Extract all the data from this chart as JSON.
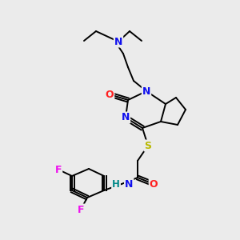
{
  "background_color": "#ebebeb",
  "figsize": [
    3.0,
    3.0
  ],
  "dpi": 100,
  "colors": {
    "N": "#1010ee",
    "O": "#ff2020",
    "S": "#b8b800",
    "F": "#ee10ee",
    "HN": "#008888",
    "C": "#000000",
    "bond": "#000000"
  }
}
